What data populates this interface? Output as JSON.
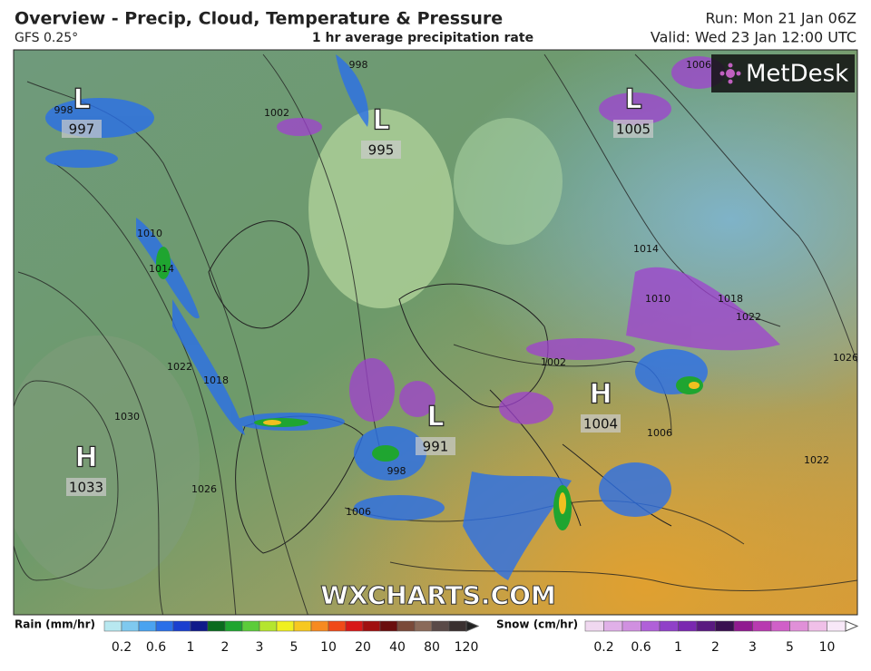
{
  "header": {
    "title": "Overview - Precip, Cloud, Temperature & Pressure",
    "model": "GFS 0.25°",
    "subtitle": "1 hr average precipitation rate",
    "run": "Run: Mon 21 Jan 06Z",
    "valid": "Valid: Wed 23 Jan 12:00 UTC"
  },
  "map": {
    "logo": "MetDesk",
    "watermark": "WXCHARTS.COM",
    "pressure_centers": [
      {
        "symbol": "L",
        "value": 997
      },
      {
        "symbol": "L",
        "value": 995
      },
      {
        "symbol": "L",
        "value": 1005
      },
      {
        "symbol": "L",
        "value": 991
      },
      {
        "symbol": "H",
        "value": 1004
      },
      {
        "symbol": "H",
        "value": 1033
      }
    ],
    "isobar_labels": [
      998,
      1002,
      998,
      1006,
      1010,
      1014,
      1022,
      1018,
      1030,
      1026,
      998,
      1006,
      1014,
      1010,
      1018,
      1022,
      1026,
      1002,
      1006,
      1022
    ]
  },
  "legend": {
    "rain": {
      "label": "Rain (mm/hr)",
      "ticks": [
        0.2,
        0.6,
        1,
        2,
        3,
        5,
        10,
        20,
        40,
        80,
        120
      ],
      "colors": [
        "#b8e8f0",
        "#7fc9ef",
        "#4aa3f0",
        "#2a6fe8",
        "#1a3fcf",
        "#101a8a",
        "#0b6b1e",
        "#1fa530",
        "#5ccc3a",
        "#b5e52e",
        "#f0f020",
        "#f7c820",
        "#f78a20",
        "#f04a18",
        "#d81818",
        "#a01010",
        "#6a0e0e",
        "#7a4a3a",
        "#8a6a5a",
        "#5a4a48",
        "#3a3030"
      ]
    },
    "snow": {
      "label": "Snow (cm/hr)",
      "ticks": [
        0.2,
        0.6,
        1,
        2,
        3,
        5,
        10
      ],
      "colors": [
        "#f0d8f0",
        "#e0b0e8",
        "#d090e0",
        "#b060d8",
        "#9040c8",
        "#7a28b0",
        "#5a1a80",
        "#3a1050",
        "#901a90",
        "#b83ab0",
        "#d060c8",
        "#e090d8",
        "#f0c0e8",
        "#f8e8f8"
      ]
    }
  }
}
